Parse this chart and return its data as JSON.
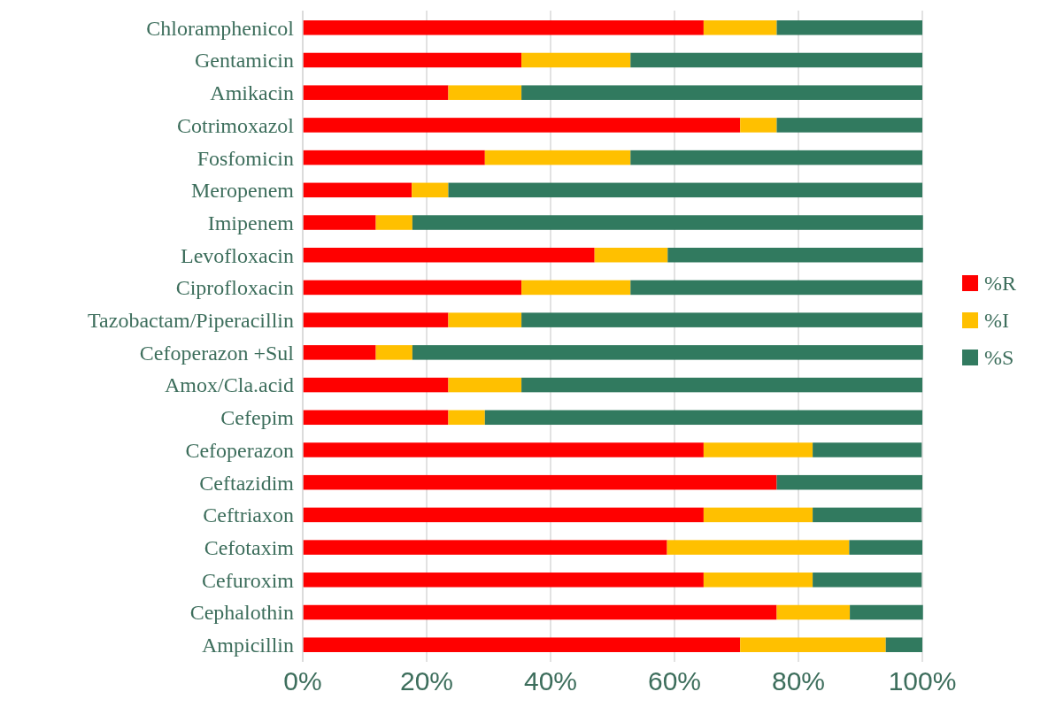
{
  "chart_data": {
    "type": "bar",
    "orientation": "horizontal",
    "stacked": true,
    "categories": [
      "Chloramphenicol",
      "Gentamicin",
      "Amikacin",
      "Cotrimoxazol",
      "Fosfomicin",
      "Meropenem",
      "Imipenem",
      "Levofloxacin",
      "Ciprofloxacin",
      "Tazobactam/Piperacillin",
      "Cefoperazon +Sul",
      "Amox/Cla.acid",
      "Cefepim",
      "Cefoperazon",
      "Ceftazidim",
      "Ceftriaxon",
      "Cefotaxim",
      "Cefuroxim",
      "Cephalothin",
      "Ampicillin"
    ],
    "series": [
      {
        "name": "%R",
        "color": "#ff0000",
        "values": [
          64.7,
          35.3,
          23.5,
          70.6,
          29.4,
          17.6,
          11.8,
          47.1,
          35.3,
          23.5,
          11.8,
          23.5,
          23.5,
          64.7,
          76.5,
          64.7,
          58.8,
          64.7,
          76.5,
          70.6
        ]
      },
      {
        "name": "%I",
        "color": "#ffc000",
        "values": [
          11.8,
          17.6,
          11.8,
          5.9,
          23.5,
          5.9,
          5.9,
          11.8,
          17.6,
          11.8,
          5.9,
          11.8,
          5.9,
          17.6,
          0,
          17.6,
          29.4,
          17.6,
          11.8,
          23.5
        ]
      },
      {
        "name": "%S",
        "color": "#317a5f",
        "values": [
          23.5,
          47.1,
          64.7,
          23.5,
          47.1,
          76.5,
          82.4,
          41.2,
          47.1,
          64.7,
          82.4,
          64.7,
          70.6,
          17.6,
          23.5,
          17.6,
          11.8,
          17.6,
          11.8,
          5.9
        ]
      }
    ],
    "xlim": [
      0,
      100
    ],
    "xticks": [
      {
        "value": 0,
        "label": "0%"
      },
      {
        "value": 20,
        "label": "20%"
      },
      {
        "value": 40,
        "label": "40%"
      },
      {
        "value": 60,
        "label": "60%"
      },
      {
        "value": 80,
        "label": "80%"
      },
      {
        "value": 100,
        "label": "100%"
      }
    ],
    "grid": "x",
    "legend": "right"
  }
}
